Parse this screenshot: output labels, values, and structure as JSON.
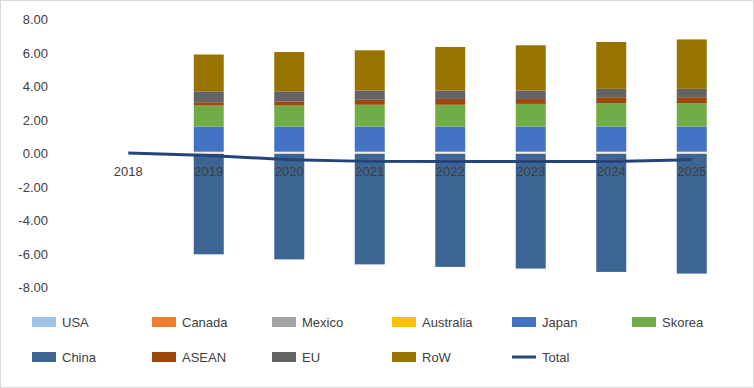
{
  "chart_data": {
    "type": "bar",
    "stacked": true,
    "grid": false,
    "legend": "bottom",
    "categories": [
      "2018",
      "2019",
      "2020",
      "2021",
      "2022",
      "2023",
      "2024",
      "2025"
    ],
    "ylim": [
      -8,
      8
    ],
    "yticks": [
      {
        "value": -8,
        "label": "-8.00"
      },
      {
        "value": -6,
        "label": "-6.00"
      },
      {
        "value": -4,
        "label": "-4.00"
      },
      {
        "value": -2,
        "label": "-2.00"
      },
      {
        "value": 0,
        "label": "0.00"
      },
      {
        "value": 2,
        "label": "2.00"
      },
      {
        "value": 4,
        "label": "4.00"
      },
      {
        "value": 6,
        "label": "6.00"
      },
      {
        "value": 8,
        "label": "8.00"
      }
    ],
    "series": [
      {
        "name": "USA",
        "color": "#9dc3e6",
        "values": [
          null,
          0.02,
          0.02,
          0.02,
          0.02,
          0.02,
          0.02,
          0.02
        ]
      },
      {
        "name": "Canada",
        "color": "#ed7d31",
        "values": [
          null,
          0.03,
          0.03,
          0.03,
          0.03,
          0.03,
          0.03,
          0.03
        ]
      },
      {
        "name": "Mexico",
        "color": "#a5a5a5",
        "values": [
          null,
          0.02,
          0.02,
          0.02,
          0.02,
          0.02,
          0.02,
          0.02
        ]
      },
      {
        "name": "Australia",
        "color": "#ffc000",
        "values": [
          null,
          0.01,
          0.01,
          0.01,
          0.01,
          0.01,
          0.01,
          0.01
        ]
      },
      {
        "name": "Japan",
        "color": "#4472c4",
        "values": [
          null,
          1.5,
          1.5,
          1.5,
          1.5,
          1.5,
          1.5,
          1.5
        ]
      },
      {
        "name": "Skorea",
        "color": "#70ad47",
        "values": [
          null,
          1.25,
          1.25,
          1.3,
          1.3,
          1.35,
          1.4,
          1.4
        ]
      },
      {
        "name": "China",
        "color": "#3d6594",
        "values": [
          null,
          -6.05,
          -6.35,
          -6.65,
          -6.8,
          -6.9,
          -7.1,
          -7.2
        ]
      },
      {
        "name": "ASEAN",
        "color": "#9e480e",
        "values": [
          null,
          0.2,
          0.25,
          0.3,
          0.35,
          0.3,
          0.35,
          0.35
        ]
      },
      {
        "name": "EU",
        "color": "#636363",
        "values": [
          null,
          0.65,
          0.6,
          0.55,
          0.5,
          0.5,
          0.5,
          0.5
        ]
      },
      {
        "name": "RoW",
        "color": "#997300",
        "values": [
          null,
          2.2,
          2.35,
          2.4,
          2.6,
          2.7,
          2.8,
          2.95
        ]
      },
      {
        "name": "Total",
        "color": "#264478",
        "type": "line",
        "values": [
          0,
          -0.15,
          -0.4,
          -0.5,
          -0.5,
          -0.5,
          -0.5,
          -0.4
        ]
      }
    ]
  }
}
